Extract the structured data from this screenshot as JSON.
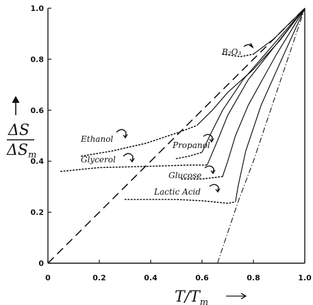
{
  "chart_data": {
    "type": "line",
    "xlabel": "T/T",
    "xlabel_sub": "m",
    "ylabel_num": "ΔS",
    "ylabel_den": "ΔS",
    "ylabel_sub": "m",
    "xlim": [
      0,
      1.0
    ],
    "ylim": [
      0,
      1.0
    ],
    "xticks": [
      "0",
      "0.2",
      "0.4",
      "0.6",
      "0.8",
      "1.0"
    ],
    "yticks": [
      "0",
      "0.2",
      "0.4",
      "0.6",
      "0.8",
      "1.0"
    ],
    "grid": false,
    "labels": {
      "ethanol": "Ethanol",
      "glycerol": "Glycerol",
      "propanol": "Propanol",
      "glucose": "Glucose",
      "lactic": "Lactic Acid",
      "b2o3": "B₂O₃"
    },
    "series": [
      {
        "name": "Ethanol",
        "supercooled": [
          [
            0.13,
            0.42
          ],
          [
            0.25,
            0.44
          ],
          [
            0.38,
            0.47
          ],
          [
            0.5,
            0.51
          ],
          [
            0.58,
            0.54
          ]
        ],
        "liquid": [
          [
            0.58,
            0.54
          ],
          [
            0.64,
            0.6
          ],
          [
            0.7,
            0.67
          ],
          [
            0.8,
            0.76
          ],
          [
            0.9,
            0.87
          ],
          [
            1.0,
            1.0
          ]
        ]
      },
      {
        "name": "Propanol",
        "supercooled": [
          [
            0.5,
            0.41
          ],
          [
            0.55,
            0.42
          ],
          [
            0.6,
            0.435
          ]
        ],
        "liquid": [
          [
            0.6,
            0.435
          ],
          [
            0.63,
            0.5
          ],
          [
            0.68,
            0.6
          ],
          [
            0.76,
            0.72
          ],
          [
            0.88,
            0.86
          ],
          [
            1.0,
            1.0
          ]
        ]
      },
      {
        "name": "Glycerol",
        "supercooled": [
          [
            0.05,
            0.36
          ],
          [
            0.2,
            0.375
          ],
          [
            0.4,
            0.38
          ],
          [
            0.55,
            0.385
          ],
          [
            0.62,
            0.385
          ]
        ],
        "liquid": [
          [
            0.62,
            0.385
          ],
          [
            0.66,
            0.48
          ],
          [
            0.7,
            0.58
          ],
          [
            0.78,
            0.72
          ],
          [
            0.89,
            0.86
          ],
          [
            1.0,
            1.0
          ]
        ]
      },
      {
        "name": "Glucose",
        "supercooled": [
          [
            0.52,
            0.33
          ],
          [
            0.6,
            0.33
          ],
          [
            0.68,
            0.34
          ]
        ],
        "liquid": [
          [
            0.68,
            0.34
          ],
          [
            0.7,
            0.4
          ],
          [
            0.73,
            0.5
          ],
          [
            0.78,
            0.62
          ],
          [
            0.89,
            0.82
          ],
          [
            1.0,
            1.0
          ]
        ]
      },
      {
        "name": "Lactic Acid",
        "supercooled": [
          [
            0.3,
            0.25
          ],
          [
            0.5,
            0.25
          ],
          [
            0.6,
            0.245
          ],
          [
            0.7,
            0.235
          ],
          [
            0.73,
            0.24
          ]
        ],
        "liquid": [
          [
            0.73,
            0.24
          ],
          [
            0.74,
            0.3
          ],
          [
            0.77,
            0.44
          ],
          [
            0.83,
            0.62
          ],
          [
            0.91,
            0.8
          ],
          [
            1.0,
            1.0
          ]
        ]
      },
      {
        "name": "B₂O₃",
        "supercooled": [
          [
            0.68,
            0.82
          ],
          [
            0.75,
            0.81
          ],
          [
            0.8,
            0.82
          ]
        ],
        "liquid": [
          [
            0.8,
            0.82
          ],
          [
            0.88,
            0.88
          ],
          [
            1.0,
            1.0
          ]
        ]
      }
    ],
    "reference_lines": [
      {
        "style": "dashed",
        "points": [
          [
            0.0,
            0.0
          ],
          [
            1.0,
            1.0
          ]
        ]
      },
      {
        "style": "dash-dot",
        "points": [
          [
            0.66,
            0.0
          ],
          [
            0.7,
            0.12
          ],
          [
            0.74,
            0.24
          ],
          [
            0.8,
            0.4
          ],
          [
            0.9,
            0.7
          ],
          [
            1.0,
            1.0
          ]
        ]
      }
    ]
  }
}
